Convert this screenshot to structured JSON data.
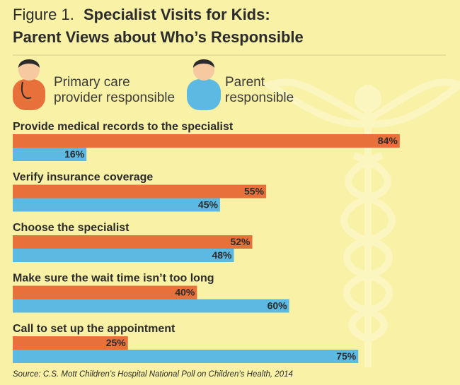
{
  "chart_data": {
    "type": "bar",
    "orientation": "horizontal",
    "figure_label": "Figure 1.",
    "title": [
      "Specialist Visits for Kids:",
      "Parent Views about Who’s Responsible"
    ],
    "categories": [
      "Provide medical records to the specialist",
      "Verify insurance coverage",
      "Choose the specialist",
      "Make sure the wait time isn’t too long",
      "Call to set up the appointment"
    ],
    "series": [
      {
        "name": "Primary care provider responsible",
        "color": "#e8703a",
        "values": [
          84,
          55,
          52,
          40,
          25
        ],
        "value_labels": [
          "84%",
          "55%",
          "52%",
          "40%",
          "25%"
        ]
      },
      {
        "name": "Parent responsible",
        "color": "#5cb9e2",
        "values": [
          16,
          45,
          48,
          60,
          75
        ],
        "value_labels": [
          "16%",
          "45%",
          "48%",
          "60%",
          "75%"
        ]
      }
    ],
    "source": "Source: C.S. Mott Children’s Hospital National Poll on Children’s Health, 2014"
  }
}
